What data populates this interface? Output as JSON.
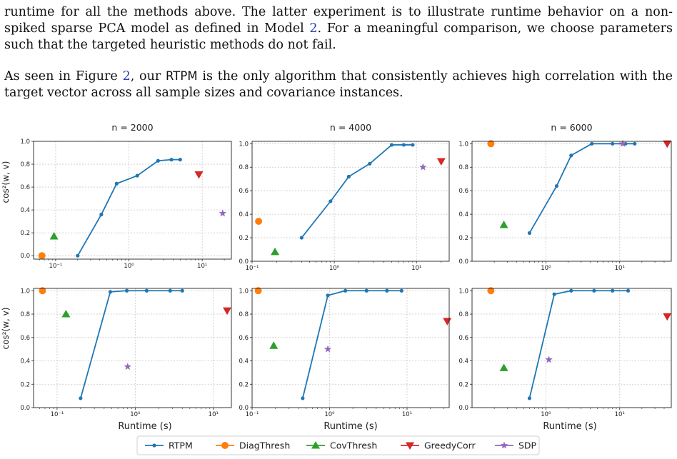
{
  "text": {
    "p1_a": "runtime for all the methods above. The latter experiment is to illustrate runtime behavior on a non-spiked sparse PCA model as defined in Model ",
    "p1_ref": "2",
    "p1_b": ". For a meaningful comparison, we choose parameters such that the targeted heuristic methods do not fail.",
    "p2_a": "As seen in Figure ",
    "p2_ref": "2",
    "p2_b": ", our ",
    "p2_rtpm": "RTPM",
    "p2_c": " is the only algorithm that consistently achieves high correlation with the target vector across all sample sizes and covariance instances."
  },
  "figure": {
    "ylabel": "cos²(w, v)",
    "xlabel": "Runtime (s)",
    "legend": [
      {
        "name": "RTPM",
        "color": "#1f77b4",
        "marker": "circle-line"
      },
      {
        "name": "DiagThresh",
        "color": "#ff7f0e",
        "marker": "circle"
      },
      {
        "name": "CovThresh",
        "color": "#2ca02c",
        "marker": "triangle-up"
      },
      {
        "name": "GreedyCorr",
        "color": "#d62728",
        "marker": "triangle-down"
      },
      {
        "name": "SDP",
        "color": "#9467bd",
        "marker": "star"
      }
    ]
  },
  "chart_data": [
    {
      "type": "scatter",
      "title": "n = 2000",
      "xscale": "log",
      "xlim": [
        0.05,
        25
      ],
      "ylim": [
        -0.03,
        1.0
      ],
      "yticks": [
        "0.0",
        "0.2",
        "0.4",
        "0.6",
        "0.8",
        "1.0"
      ],
      "xticks": [
        "10⁻¹",
        "10⁰",
        "10¹"
      ],
      "series": [
        {
          "name": "RTPM",
          "x": [
            0.2,
            0.42,
            0.68,
            1.3,
            2.5,
            3.8,
            5.0
          ],
          "y": [
            0.0,
            0.36,
            0.63,
            0.7,
            0.83,
            0.84,
            0.84
          ]
        },
        {
          "name": "DiagThresh",
          "x": [
            0.065
          ],
          "y": [
            0.0
          ]
        },
        {
          "name": "CovThresh",
          "x": [
            0.095
          ],
          "y": [
            0.17
          ]
        },
        {
          "name": "GreedyCorr",
          "x": [
            9.0
          ],
          "y": [
            0.71
          ]
        },
        {
          "name": "SDP",
          "x": [
            19.0
          ],
          "y": [
            0.37
          ]
        }
      ]
    },
    {
      "type": "scatter",
      "title": "n = 4000",
      "xscale": "log",
      "xlim": [
        0.1,
        25
      ],
      "ylim": [
        0.0,
        1.02
      ],
      "yticks": [
        "0.0",
        "0.2",
        "0.4",
        "0.6",
        "0.8",
        "1.0"
      ],
      "xticks": [
        "10⁻¹",
        "10⁰",
        "10¹"
      ],
      "series": [
        {
          "name": "RTPM",
          "x": [
            0.4,
            0.9,
            1.5,
            2.7,
            5.0,
            7.0,
            9.0
          ],
          "y": [
            0.2,
            0.51,
            0.72,
            0.83,
            0.99,
            0.99,
            0.99
          ]
        },
        {
          "name": "DiagThresh",
          "x": [
            0.12
          ],
          "y": [
            0.34
          ]
        },
        {
          "name": "CovThresh",
          "x": [
            0.19
          ],
          "y": [
            0.08
          ]
        },
        {
          "name": "GreedyCorr",
          "x": [
            20.0
          ],
          "y": [
            0.85
          ]
        },
        {
          "name": "SDP",
          "x": [
            12.0
          ],
          "y": [
            0.8
          ]
        }
      ]
    },
    {
      "type": "scatter",
      "title": "n = 6000",
      "xscale": "log",
      "xlim": [
        0.1,
        50
      ],
      "ylim": [
        0.0,
        1.02
      ],
      "yticks": [
        "0.0",
        "0.2",
        "0.4",
        "0.6",
        "0.8",
        "1.0"
      ],
      "xticks": [
        "10⁰",
        "10¹"
      ],
      "series": [
        {
          "name": "RTPM",
          "x": [
            0.6,
            1.4,
            2.2,
            4.2,
            8.0,
            12.0,
            16.0
          ],
          "y": [
            0.24,
            0.64,
            0.9,
            1.0,
            1.0,
            1.0,
            1.0
          ]
        },
        {
          "name": "DiagThresh",
          "x": [
            0.18
          ],
          "y": [
            1.0
          ]
        },
        {
          "name": "CovThresh",
          "x": [
            0.27
          ],
          "y": [
            0.31
          ]
        },
        {
          "name": "GreedyCorr",
          "x": [
            44.0
          ],
          "y": [
            1.0
          ]
        },
        {
          "name": "SDP",
          "x": [
            11.0
          ],
          "y": [
            1.0
          ]
        }
      ]
    },
    {
      "type": "scatter",
      "title": "",
      "xscale": "log",
      "xlim": [
        0.05,
        17
      ],
      "ylim": [
        0.0,
        1.02
      ],
      "yticks": [
        "0.0",
        "0.2",
        "0.4",
        "0.6",
        "0.8",
        "1.0"
      ],
      "xticks": [
        "10⁻¹",
        "10⁰",
        "10¹"
      ],
      "series": [
        {
          "name": "RTPM",
          "x": [
            0.2,
            0.48,
            0.78,
            1.4,
            2.8,
            4.0
          ],
          "y": [
            0.08,
            0.99,
            1.0,
            1.0,
            1.0,
            1.0
          ]
        },
        {
          "name": "DiagThresh",
          "x": [
            0.065
          ],
          "y": [
            1.0
          ]
        },
        {
          "name": "CovThresh",
          "x": [
            0.13
          ],
          "y": [
            0.8
          ]
        },
        {
          "name": "GreedyCorr",
          "x": [
            15.0
          ],
          "y": [
            0.83
          ]
        },
        {
          "name": "SDP",
          "x": [
            0.8
          ],
          "y": [
            0.35
          ]
        }
      ]
    },
    {
      "type": "scatter",
      "title": "",
      "xscale": "log",
      "xlim": [
        0.1,
        35
      ],
      "ylim": [
        0.0,
        1.02
      ],
      "yticks": [
        "0.0",
        "0.2",
        "0.4",
        "0.6",
        "0.8",
        "1.0"
      ],
      "xticks": [
        "10⁻¹",
        "10⁰",
        "10¹"
      ],
      "series": [
        {
          "name": "RTPM",
          "x": [
            0.45,
            0.95,
            1.6,
            3.0,
            5.5,
            8.5
          ],
          "y": [
            0.08,
            0.96,
            1.0,
            1.0,
            1.0,
            1.0
          ]
        },
        {
          "name": "DiagThresh",
          "x": [
            0.12
          ],
          "y": [
            1.0
          ]
        },
        {
          "name": "CovThresh",
          "x": [
            0.19
          ],
          "y": [
            0.53
          ]
        },
        {
          "name": "GreedyCorr",
          "x": [
            33.0
          ],
          "y": [
            0.74
          ]
        },
        {
          "name": "SDP",
          "x": [
            0.95
          ],
          "y": [
            0.5
          ]
        }
      ]
    },
    {
      "type": "scatter",
      "title": "",
      "xscale": "log",
      "xlim": [
        0.1,
        50
      ],
      "ylim": [
        0.0,
        1.02
      ],
      "yticks": [
        "0.0",
        "0.2",
        "0.4",
        "0.6",
        "0.8",
        "1.0"
      ],
      "xticks": [
        "10⁰",
        "10¹"
      ],
      "series": [
        {
          "name": "RTPM",
          "x": [
            0.6,
            1.3,
            2.2,
            4.5,
            8.0,
            13.0
          ],
          "y": [
            0.08,
            0.97,
            1.0,
            1.0,
            1.0,
            1.0
          ]
        },
        {
          "name": "DiagThresh",
          "x": [
            0.18
          ],
          "y": [
            1.0
          ]
        },
        {
          "name": "CovThresh",
          "x": [
            0.27
          ],
          "y": [
            0.34
          ]
        },
        {
          "name": "GreedyCorr",
          "x": [
            44.0
          ],
          "y": [
            0.78
          ]
        },
        {
          "name": "SDP",
          "x": [
            1.1
          ],
          "y": [
            0.41
          ]
        }
      ]
    }
  ]
}
